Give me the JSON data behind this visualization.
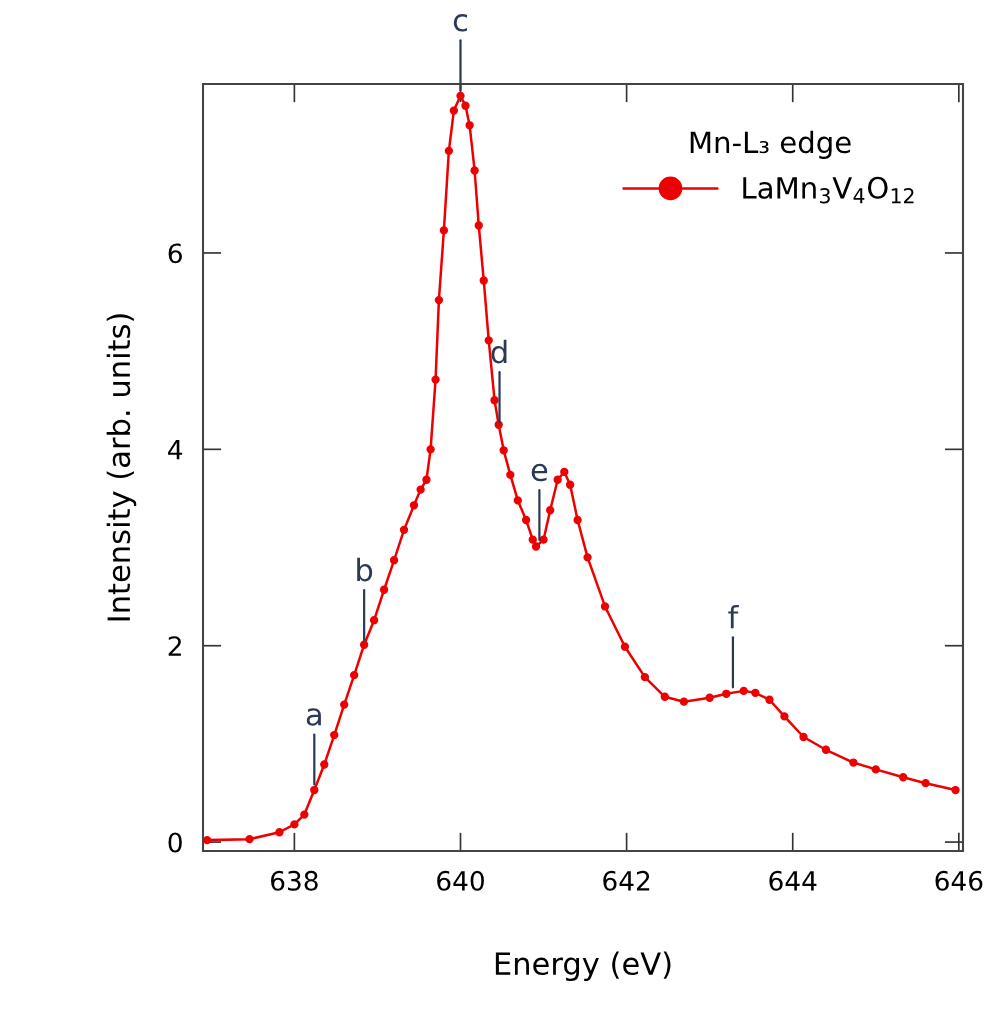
{
  "chart_data": {
    "type": "line",
    "xlabel": "Energy (eV)",
    "ylabel": "Intensity (arb. units)",
    "legend_title": "Mn-L₃ edge",
    "xlim": [
      636.9,
      646.05
    ],
    "xticks": [
      638,
      640,
      642,
      644,
      646
    ],
    "ylim": [
      -0.09,
      7.72
    ],
    "yticks": [
      0,
      2,
      4,
      6
    ],
    "grid": false,
    "legend": "top right",
    "marker": "circle",
    "line_style": "solid",
    "series": [
      {
        "name": "LaMn$_{3}$V$_{4}$O$_{12}$",
        "color": "#ee0000",
        "x": [
          636.95,
          637.46,
          637.82,
          638.0,
          638.12,
          638.24,
          638.36,
          638.48,
          638.6,
          638.72,
          638.84,
          638.96,
          639.08,
          639.2,
          639.32,
          639.44,
          639.52,
          639.59,
          639.64,
          639.7,
          639.74,
          639.8,
          639.86,
          639.92,
          640.0,
          640.06,
          640.11,
          640.17,
          640.22,
          640.28,
          640.34,
          640.41,
          640.46,
          640.52,
          640.6,
          640.69,
          640.79,
          640.87,
          640.91,
          641.0,
          641.08,
          641.17,
          641.25,
          641.32,
          641.41,
          641.53,
          641.74,
          641.98,
          642.22,
          642.46,
          642.69,
          643.0,
          643.2,
          643.41,
          643.55,
          643.72,
          643.9,
          644.13,
          644.4,
          644.73,
          645.0,
          645.33,
          645.6,
          645.96
        ],
        "values": [
          0.02,
          0.03,
          0.1,
          0.18,
          0.28,
          0.53,
          0.79,
          1.09,
          1.4,
          1.7,
          2.01,
          2.26,
          2.57,
          2.87,
          3.18,
          3.43,
          3.59,
          3.69,
          4.0,
          4.71,
          5.52,
          6.23,
          7.04,
          7.45,
          7.6,
          7.5,
          7.3,
          6.84,
          6.28,
          5.72,
          5.11,
          4.5,
          4.25,
          3.99,
          3.74,
          3.48,
          3.28,
          3.08,
          3.01,
          3.08,
          3.38,
          3.69,
          3.77,
          3.64,
          3.28,
          2.9,
          2.4,
          1.99,
          1.68,
          1.48,
          1.43,
          1.47,
          1.51,
          1.54,
          1.52,
          1.45,
          1.28,
          1.07,
          0.94,
          0.81,
          0.74,
          0.66,
          0.6,
          0.53
        ]
      }
    ],
    "annotations": [
      {
        "text": "a",
        "x": 638.24,
        "y": 0.53
      },
      {
        "text": "b",
        "x": 638.84,
        "y": 2.0
      },
      {
        "text": "c",
        "x": 640.0,
        "y": 7.6
      },
      {
        "text": "d",
        "x": 640.47,
        "y": 4.22
      },
      {
        "text": "e",
        "x": 640.95,
        "y": 3.02
      },
      {
        "text": "f",
        "x": 643.28,
        "y": 1.52
      }
    ]
  }
}
